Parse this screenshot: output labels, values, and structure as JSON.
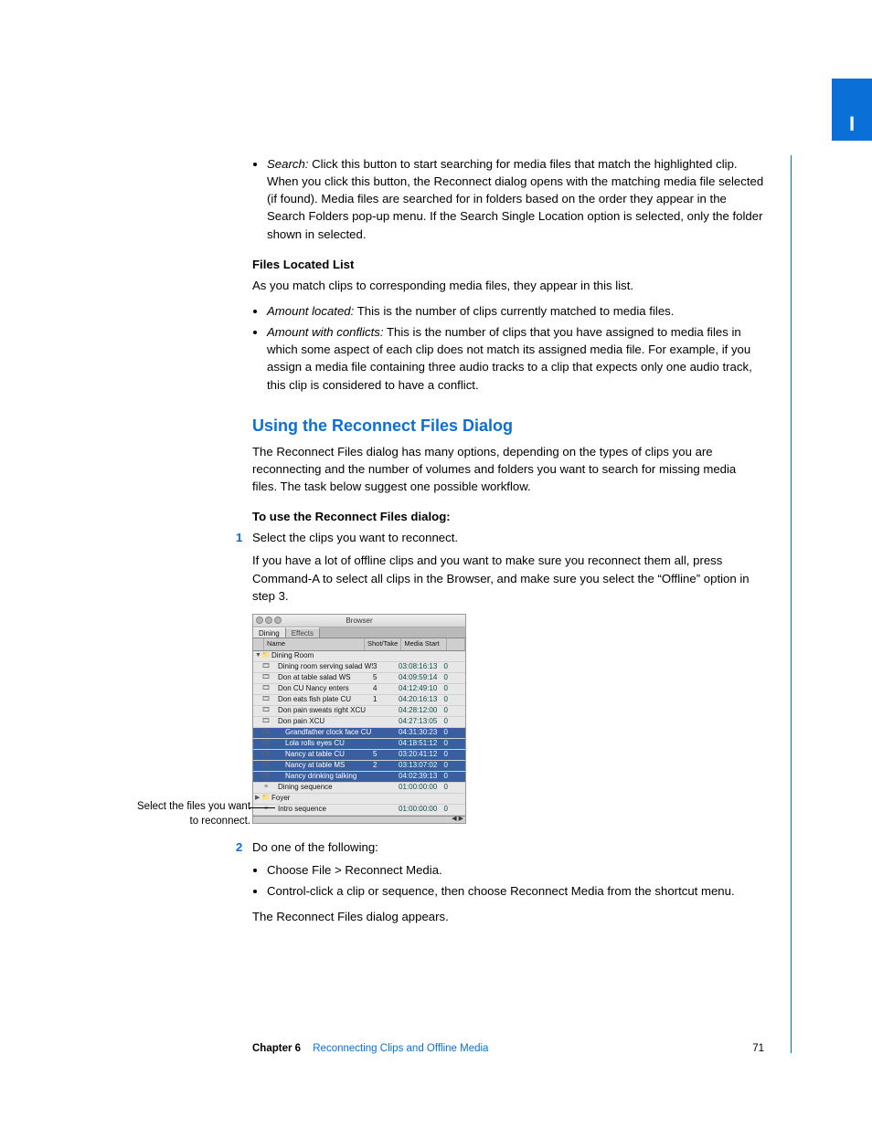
{
  "sideTab": "I",
  "bullet_search": {
    "label": "Search:",
    "text": "  Click this button to start searching for media files that match the highlighted clip. When you click this button, the Reconnect dialog opens with the matching media file selected (if found). Media files are searched for in folders based on the order they appear in the Search Folders pop-up menu. If the Search Single Location option is selected, only the folder shown in selected."
  },
  "files_located_heading": "Files Located List",
  "files_located_intro": "As you match clips to corresponding media files, they appear in this list.",
  "located_bullets": [
    {
      "label": "Amount located:",
      "text": "  This is the number of clips currently matched to media files."
    },
    {
      "label": "Amount with conflicts:",
      "text": "  This is the number of clips that you have assigned to media files in which some aspect of each clip does not match its assigned media file. For example, if you assign a media file containing three audio tracks to a clip that expects only one audio track, this clip is considered to have a conflict."
    }
  ],
  "section_heading": "Using the Reconnect Files Dialog",
  "section_intro": "The Reconnect Files dialog has many options, depending on the types of clips you are reconnecting and the number of volumes and folders you want to search for missing media files. The task below suggest one possible workflow.",
  "howto_heading": "To use the Reconnect Files dialog:",
  "step1_num": "1",
  "step1_text": "Select the clips you want to reconnect.",
  "step1_detail": "If you have a lot of offline clips and you want to make sure you reconnect them all, press Command-A to select all clips in the Browser, and make sure you select the “Offline” option in step 3.",
  "callout_text": "Select the files you want to reconnect.",
  "step2_num": "2",
  "step2_text": "Do one of the following:",
  "step2_bullets": [
    "Choose File > Reconnect Media.",
    "Control-click a clip or sequence, then choose Reconnect Media from the shortcut menu."
  ],
  "step2_after": "The Reconnect Files dialog appears.",
  "footer": {
    "chapter": "Chapter 6",
    "title": "Reconnecting Clips and Offline Media",
    "page": "71"
  },
  "browser": {
    "title": "Browser",
    "tabs": [
      "Dining",
      "Effects"
    ],
    "columns": [
      "Name",
      "Shot/Take",
      "Media Start",
      ""
    ],
    "rows": [
      {
        "disc": "▼",
        "icon": "📁",
        "name": "Dining Room",
        "st": "",
        "ms": "",
        "last": "",
        "sel": false,
        "indent": 0
      },
      {
        "disc": "",
        "icon": "🎞",
        "name": "Dining room serving salad WS",
        "st": "3",
        "ms": "03:08:16:13",
        "last": "0",
        "sel": false,
        "indent": 1
      },
      {
        "disc": "",
        "icon": "🎞",
        "name": "Don at table salad WS",
        "st": "5",
        "ms": "04:09:59:14",
        "last": "0",
        "sel": false,
        "indent": 1
      },
      {
        "disc": "",
        "icon": "🎞",
        "name": "Don CU Nancy enters",
        "st": "4",
        "ms": "04:12:49:10",
        "last": "0",
        "sel": false,
        "indent": 1
      },
      {
        "disc": "",
        "icon": "🎞",
        "name": "Don eats fish plate CU",
        "st": "1",
        "ms": "04:20:16:13",
        "last": "0",
        "sel": false,
        "indent": 1
      },
      {
        "disc": "",
        "icon": "🎞",
        "name": "Don pain sweats right XCU",
        "st": "",
        "ms": "04:28:12:00",
        "last": "0",
        "sel": false,
        "indent": 1
      },
      {
        "disc": "",
        "icon": "🎞",
        "name": "Don pain XCU",
        "st": "",
        "ms": "04:27:13:05",
        "last": "0",
        "sel": false,
        "indent": 1
      },
      {
        "disc": "",
        "icon": "🎞",
        "name": "Grandfather clock face CU",
        "st": "",
        "ms": "04:31:30:23",
        "last": "0",
        "sel": true,
        "indent": 2
      },
      {
        "disc": "",
        "icon": "🎞",
        "name": "Lola rolls eyes CU",
        "st": "",
        "ms": "04:18:51:12",
        "last": "0",
        "sel": true,
        "indent": 2
      },
      {
        "disc": "",
        "icon": "🎞",
        "name": "Nancy at table CU",
        "st": "5",
        "ms": "03:20:41:12",
        "last": "0",
        "sel": true,
        "indent": 2
      },
      {
        "disc": "",
        "icon": "🎞",
        "name": "Nancy at table MS",
        "st": "2",
        "ms": "03:13:07:02",
        "last": "0",
        "sel": true,
        "indent": 2
      },
      {
        "disc": "",
        "icon": "🎞",
        "name": "Nancy drinking talking",
        "st": "",
        "ms": "04:02:39:13",
        "last": "0",
        "sel": true,
        "indent": 2
      },
      {
        "disc": "",
        "icon": "≡",
        "name": "Dining sequence",
        "st": "",
        "ms": "01:00:00:00",
        "last": "0",
        "sel": false,
        "indent": 1
      },
      {
        "disc": "▶",
        "icon": "📁",
        "name": "Foyer",
        "st": "",
        "ms": "",
        "last": "",
        "sel": false,
        "indent": 0
      },
      {
        "disc": "",
        "icon": "≡",
        "name": "Intro sequence",
        "st": "",
        "ms": "01:00:00:00",
        "last": "0",
        "sel": false,
        "indent": 1
      }
    ]
  }
}
